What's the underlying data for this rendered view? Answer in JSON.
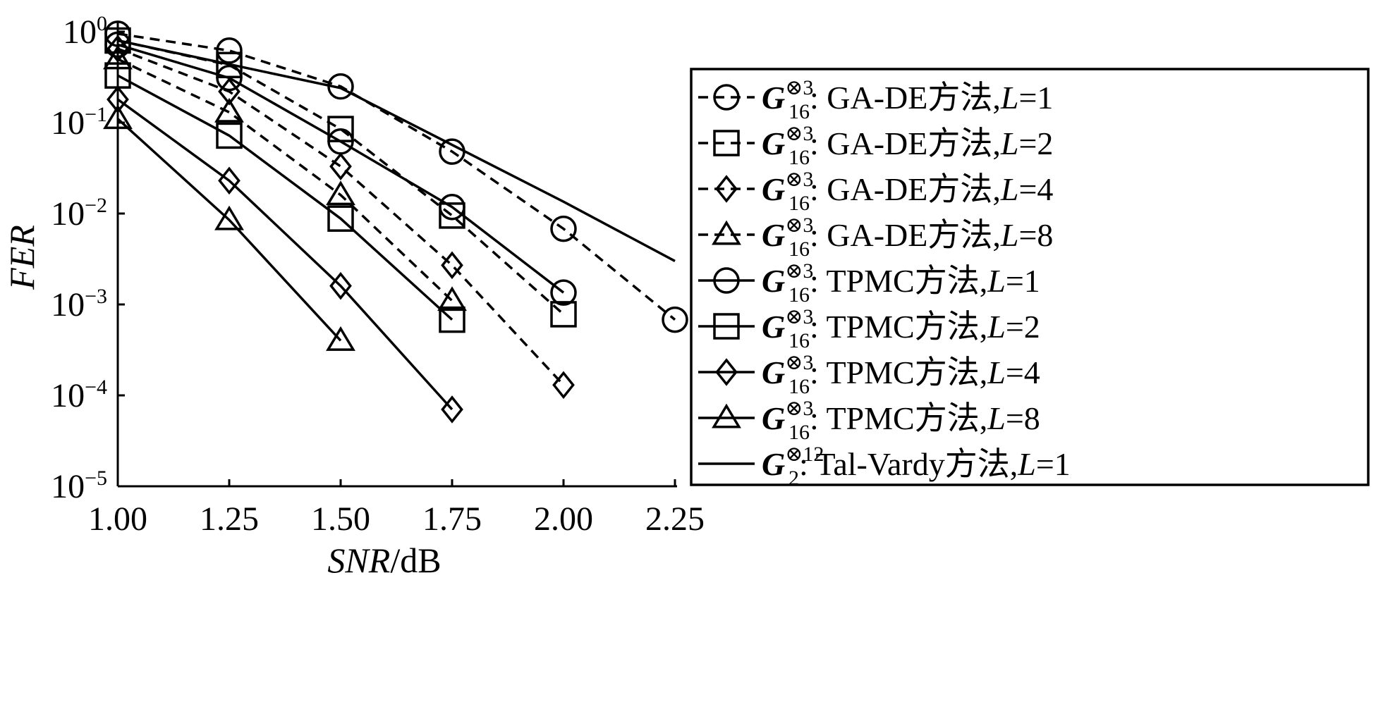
{
  "chart_data": {
    "type": "line",
    "xlabel": {
      "var": "SNR",
      "unit": "/dB"
    },
    "ylabel": "FER",
    "xlim": [
      1.0,
      2.25
    ],
    "ylim_log10": [
      -5,
      0
    ],
    "y_scale": "log",
    "x_ticks": [
      "1.00",
      "1.25",
      "1.50",
      "1.75",
      "2.00",
      "2.25"
    ],
    "y_ticks": [
      {
        "exp": "0",
        "value": 1
      },
      {
        "exp": "−1",
        "value": 0.1
      },
      {
        "exp": "−2",
        "value": 0.01
      },
      {
        "exp": "−3",
        "value": 0.001
      },
      {
        "exp": "−4",
        "value": 0.0001
      },
      {
        "exp": "−5",
        "value": 1e-05
      }
    ],
    "y_tick_base": "10",
    "grid": false,
    "legend_position": "right",
    "series": [
      {
        "name": "GA-DE方法,L=1",
        "g_base": "G",
        "g_sub": "16",
        "g_sup": "⊗3",
        "method": "GA-DE方法,",
        "L": "L",
        "eq": "=1",
        "style": "dashed",
        "marker": "circle",
        "x": [
          1.0,
          1.25,
          1.5,
          1.75,
          2.0,
          2.25
        ],
        "y": [
          0.95,
          0.62,
          0.25,
          0.048,
          0.0068,
          0.00068
        ]
      },
      {
        "name": "GA-DE方法,L=2",
        "g_base": "G",
        "g_sub": "16",
        "g_sup": "⊗3",
        "method": "GA-DE方法,",
        "L": "L",
        "eq": "=2",
        "style": "dashed",
        "marker": "square",
        "x": [
          1.0,
          1.25,
          1.5,
          1.75,
          2.0
        ],
        "y": [
          0.8,
          0.43,
          0.085,
          0.0095,
          0.00078
        ]
      },
      {
        "name": "GA-DE方法,L=4",
        "g_base": "G",
        "g_sub": "16",
        "g_sup": "⊗3",
        "method": "GA-DE方法,",
        "L": "L",
        "eq": "=4",
        "style": "dashed",
        "marker": "diamond",
        "x": [
          1.0,
          1.25,
          1.5,
          1.75,
          2.0
        ],
        "y": [
          0.65,
          0.22,
          0.033,
          0.0027,
          0.00013
        ]
      },
      {
        "name": "GA-DE方法,L=8",
        "g_base": "G",
        "g_sub": "16",
        "g_sup": "⊗3",
        "method": "GA-DE方法,",
        "L": "L",
        "eq": "=8",
        "style": "dashed",
        "marker": "triangle",
        "x": [
          1.0,
          1.25,
          1.5,
          1.75
        ],
        "y": [
          0.5,
          0.13,
          0.016,
          0.0011
        ]
      },
      {
        "name": "TPMC方法,L=1",
        "g_base": "G",
        "g_sub": "16",
        "g_sup": "⊗3",
        "method": "TPMC方法,",
        "L": "L",
        "eq": "=1",
        "style": "solid",
        "marker": "circle",
        "x": [
          1.0,
          1.25,
          1.5,
          1.75,
          2.0
        ],
        "y": [
          0.72,
          0.31,
          0.062,
          0.0118,
          0.00135
        ]
      },
      {
        "name": "TPMC方法,L=2",
        "g_base": "G",
        "g_sub": "16",
        "g_sup": "⊗3",
        "method": "TPMC方法,",
        "L": "L",
        "eq": "=2",
        "style": "solid",
        "marker": "square",
        "x": [
          1.0,
          1.25,
          1.5,
          1.75
        ],
        "y": [
          0.33,
          0.072,
          0.0088,
          0.00068
        ]
      },
      {
        "name": "TPMC方法,L=4",
        "g_base": "G",
        "g_sub": "16",
        "g_sup": "⊗3",
        "method": "TPMC方法,",
        "L": "L",
        "eq": "=4",
        "style": "solid",
        "marker": "diamond",
        "x": [
          1.0,
          1.25,
          1.5,
          1.75
        ],
        "y": [
          0.18,
          0.023,
          0.0016,
          7e-05
        ]
      },
      {
        "name": "TPMC方法,L=8",
        "g_base": "G",
        "g_sub": "16",
        "g_sup": "⊗3",
        "method": "TPMC方法,",
        "L": "L",
        "eq": "=8",
        "style": "solid",
        "marker": "triangle",
        "x": [
          1.0,
          1.25,
          1.5
        ],
        "y": [
          0.11,
          0.0085,
          0.0004
        ]
      },
      {
        "name": "Tal-Vardy方法,L=1",
        "g_base": "G",
        "g_sub": "2",
        "g_sup": "⊗12",
        "method": "Tal-Vardy方法,",
        "L": "L",
        "eq": "=1",
        "style": "solid",
        "marker": "none",
        "x": [
          1.0,
          1.5,
          2.0,
          2.25
        ],
        "y": [
          0.8,
          0.24,
          0.0135,
          0.003
        ]
      }
    ]
  }
}
